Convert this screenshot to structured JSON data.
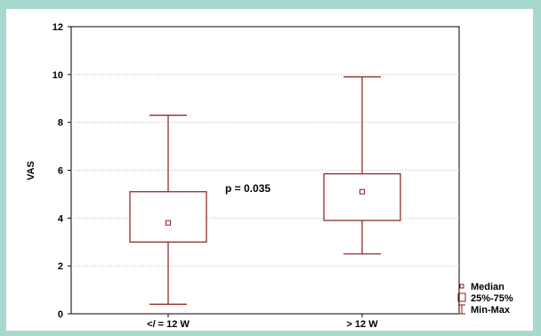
{
  "colors": {
    "background": "#a7d9cf",
    "panel": "#ffffff",
    "box": "#8b1a1a",
    "axis": "#000000",
    "grid": "#bcbcbc"
  },
  "chart_data": {
    "type": "boxplot",
    "title": "",
    "xlabel": "",
    "ylabel": "VAS",
    "ylim": [
      0,
      12
    ],
    "yticks": [
      0,
      2,
      4,
      6,
      8,
      10,
      12
    ],
    "grid": "horizontal dotted",
    "categories": [
      "</ = 12 W",
      "> 12 W"
    ],
    "series": [
      {
        "category": "</ = 12 W",
        "median": 3.8,
        "q1": 3.0,
        "q3": 5.1,
        "min": 0.4,
        "max": 8.3
      },
      {
        "category": "> 12 W",
        "median": 5.1,
        "q1": 3.9,
        "q3": 5.85,
        "min": 2.5,
        "max": 9.9
      }
    ],
    "annotation": "p = 0.035",
    "legend": {
      "placement": "bottom-right",
      "items": [
        "Median",
        "25%-75%",
        "Min-Max"
      ]
    }
  }
}
